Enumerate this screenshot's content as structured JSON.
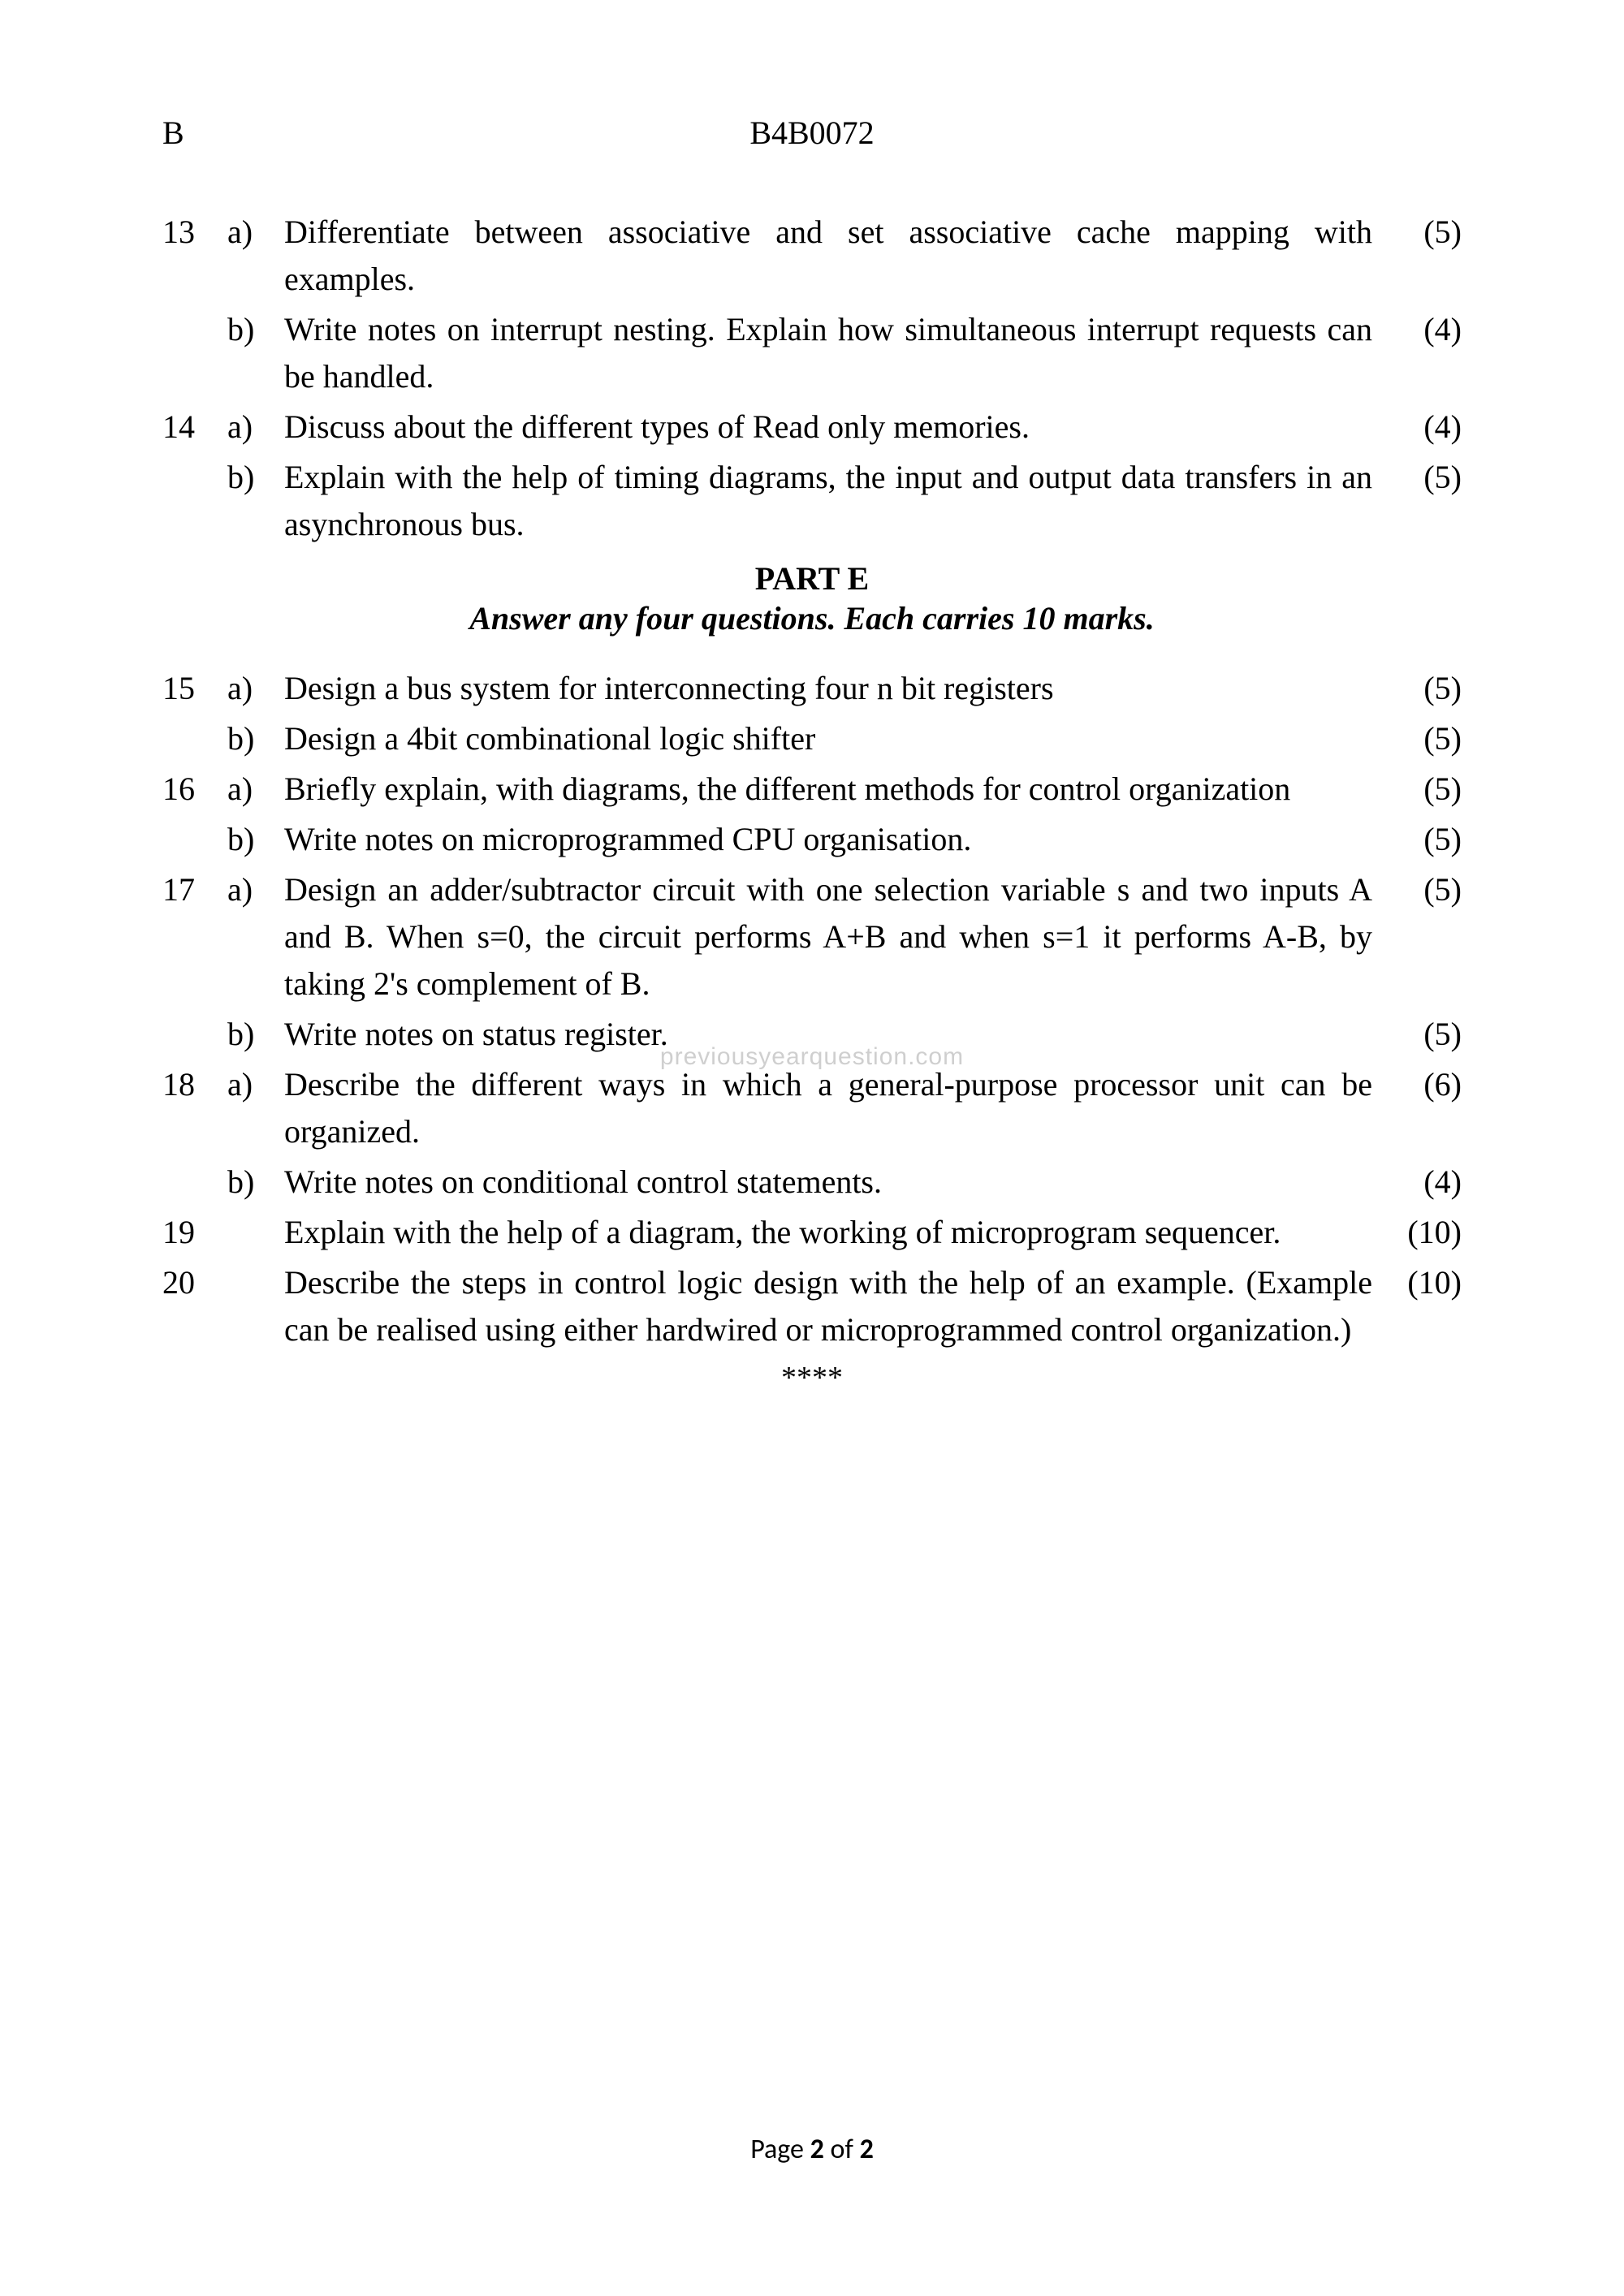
{
  "header": {
    "left": "B",
    "center": "B4B0072"
  },
  "questions": [
    {
      "num": "13",
      "sub": "a)",
      "text": "Differentiate between associative and set associative cache mapping with examples.",
      "marks": "(5)"
    },
    {
      "num": "",
      "sub": "b)",
      "text": "Write notes on interrupt nesting. Explain how simultaneous interrupt requests can be handled.",
      "marks": "(4)"
    },
    {
      "num": "14",
      "sub": "a)",
      "text": "Discuss about the different types of Read only memories.",
      "marks": "(4)"
    },
    {
      "num": "",
      "sub": "b)",
      "text": "Explain with the help of timing diagrams, the input and output data transfers in an asynchronous bus.",
      "marks": "(5)"
    }
  ],
  "partE": {
    "title": "PART E",
    "instruction": "Answer any four questions. Each carries 10 marks."
  },
  "questions2": [
    {
      "num": "15",
      "sub": "a)",
      "text": "Design a bus system for interconnecting four n bit registers",
      "marks": "(5)"
    },
    {
      "num": "",
      "sub": "b)",
      "text": "Design a 4bit combinational logic shifter",
      "marks": "(5)"
    },
    {
      "num": "16",
      "sub": "a)",
      "text": "Briefly explain, with diagrams, the different methods for control organization",
      "marks": "(5)"
    },
    {
      "num": "",
      "sub": "b)",
      "text": "Write notes on microprogrammed CPU organisation.",
      "marks": "(5)"
    },
    {
      "num": "17",
      "sub": "a)",
      "text": "Design an adder/subtractor circuit with one selection variable s and two inputs A and B. When s=0, the circuit performs A+B and when s=1 it performs A-B, by taking 2's complement of B.",
      "marks": "(5)"
    },
    {
      "num": "",
      "sub": "b)",
      "text": "Write notes on status register.",
      "marks": "(5)"
    },
    {
      "num": "18",
      "sub": "a)",
      "text": "Describe the different ways in which a general-purpose processor unit can be organized.",
      "marks": "(6)"
    },
    {
      "num": "",
      "sub": "b)",
      "text": "Write notes on conditional control statements.",
      "marks": "(4)"
    },
    {
      "num": "19",
      "sub": "",
      "text": "Explain with the help of a diagram, the working of microprogram sequencer.",
      "marks": "(10)"
    },
    {
      "num": "20",
      "sub": "",
      "text": "Describe the steps in control logic design with the help of an example. (Example can be realised using either hardwired or microprogrammed control organization.)",
      "marks": "(10)"
    }
  ],
  "endstars": "****",
  "footer": {
    "prefix": "Page ",
    "current": "2",
    "middle": " of ",
    "total": "2"
  },
  "watermark": "previousyearquestion.com"
}
